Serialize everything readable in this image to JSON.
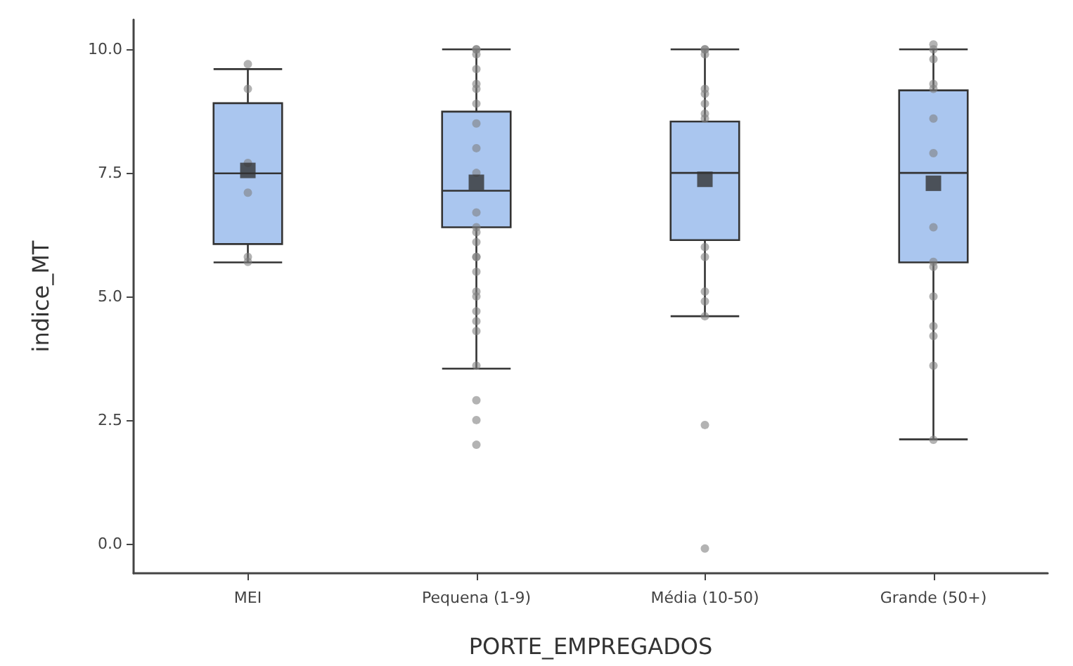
{
  "chart_data": {
    "type": "box",
    "xlabel": "PORTE_EMPREGADOS",
    "ylabel": "indice_MT",
    "categories": [
      "MEI",
      "Pequena (1-9)",
      "Média (10-50)",
      "Grande (50+)"
    ],
    "color": "#aac6ef",
    "boxes": [
      {
        "low": 5.69,
        "q1": 6.06,
        "median": 7.49,
        "q3": 8.91,
        "high": 9.6,
        "mean": 7.55
      },
      {
        "low": 3.54,
        "q1": 6.4,
        "median": 7.14,
        "q3": 8.74,
        "high": 10.0,
        "mean": 7.31
      },
      {
        "low": 4.6,
        "q1": 6.14,
        "median": 7.5,
        "q3": 8.54,
        "high": 10.0,
        "mean": 7.37
      },
      {
        "low": 2.11,
        "q1": 5.69,
        "median": 7.5,
        "q3": 9.17,
        "high": 10.0,
        "mean": 7.29
      }
    ],
    "series": [
      {
        "type": "scatter",
        "color": "#808080",
        "marker": "circle",
        "x": [
          "MEI",
          "MEI",
          "MEI",
          "MEI",
          "MEI",
          "MEI",
          "Pequena (1-9)",
          "Pequena (1-9)",
          "Pequena (1-9)",
          "Pequena (1-9)",
          "Pequena (1-9)",
          "Pequena (1-9)",
          "Pequena (1-9)",
          "Pequena (1-9)",
          "Pequena (1-9)",
          "Pequena (1-9)",
          "Pequena (1-9)",
          "Pequena (1-9)",
          "Pequena (1-9)",
          "Pequena (1-9)",
          "Pequena (1-9)",
          "Pequena (1-9)",
          "Pequena (1-9)",
          "Pequena (1-9)",
          "Pequena (1-9)",
          "Pequena (1-9)",
          "Pequena (1-9)",
          "Pequena (1-9)",
          "Pequena (1-9)",
          "Pequena (1-9)",
          "Pequena (1-9)",
          "Pequena (1-9)",
          "Média (10-50)",
          "Média (10-50)",
          "Média (10-50)",
          "Média (10-50)",
          "Média (10-50)",
          "Média (10-50)",
          "Média (10-50)",
          "Média (10-50)",
          "Média (10-50)",
          "Média (10-50)",
          "Média (10-50)",
          "Média (10-50)",
          "Média (10-50)",
          "Média (10-50)",
          "Média (10-50)",
          "Grande (50+)",
          "Grande (50+)",
          "Grande (50+)",
          "Grande (50+)",
          "Grande (50+)",
          "Grande (50+)",
          "Grande (50+)",
          "Grande (50+)",
          "Grande (50+)",
          "Grande (50+)",
          "Grande (50+)",
          "Grande (50+)",
          "Grande (50+)",
          "Grande (50+)",
          "Grande (50+)"
        ],
        "values": [
          9.7,
          9.2,
          5.8,
          5.7,
          7.7,
          7.1,
          10.0,
          10.0,
          9.9,
          9.6,
          9.3,
          9.2,
          8.9,
          8.5,
          8.0,
          7.5,
          6.7,
          6.4,
          6.3,
          6.1,
          5.8,
          5.8,
          5.5,
          5.1,
          5.0,
          4.7,
          4.5,
          4.3,
          3.6,
          2.9,
          2.5,
          2.0,
          10.0,
          10.0,
          9.9,
          9.2,
          9.1,
          8.9,
          8.7,
          8.6,
          6.0,
          5.8,
          5.1,
          4.9,
          4.6,
          2.4,
          -0.1,
          10.1,
          10.0,
          9.8,
          9.3,
          9.2,
          8.6,
          7.9,
          6.4,
          5.7,
          5.6,
          5.0,
          4.4,
          4.2,
          3.6,
          2.1
        ]
      }
    ],
    "ylim": [
      -0.6,
      10.6
    ],
    "yticks": [
      {
        "value": 0,
        "label": "0.0"
      },
      {
        "value": 2.5,
        "label": "2.5"
      },
      {
        "value": 5,
        "label": "5.0"
      },
      {
        "value": 7.5,
        "label": "7.5"
      },
      {
        "value": 10,
        "label": "10.0"
      }
    ],
    "grid": false
  }
}
